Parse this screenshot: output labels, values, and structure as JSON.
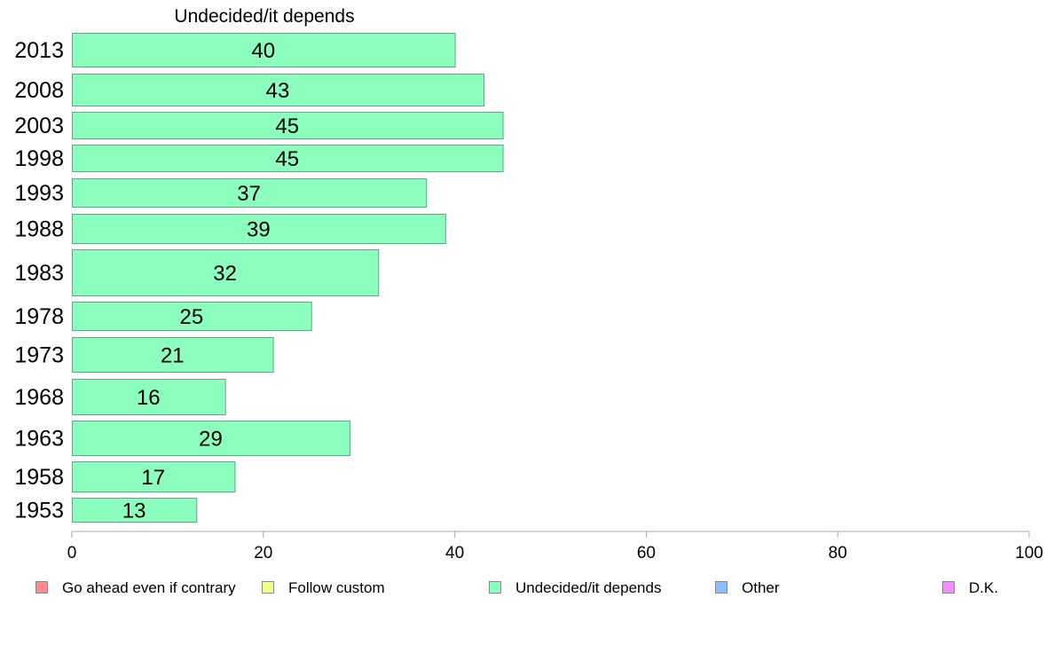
{
  "chart_data": {
    "type": "bar",
    "orientation": "horizontal",
    "title": "Undecided/it depends",
    "categories": [
      "2013",
      "2008",
      "2003",
      "1998",
      "1993",
      "1988",
      "1983",
      "1978",
      "1973",
      "1968",
      "1963",
      "1958",
      "1953"
    ],
    "series": [
      {
        "name": "Undecided/it depends",
        "values": [
          40,
          43,
          45,
          45,
          37,
          39,
          32,
          25,
          21,
          16,
          29,
          17,
          13
        ],
        "color": "#8cffbf"
      }
    ],
    "value_labels": [
      "40",
      "43",
      "45",
      "45",
      "37",
      "39",
      "32",
      "25",
      "21",
      "16",
      "29",
      "17",
      "13"
    ],
    "xlim": [
      0,
      100
    ],
    "xticks": [
      0,
      20,
      40,
      60,
      80,
      100
    ],
    "xtick_labels": [
      "0",
      "20",
      "40",
      "60",
      "80",
      "100"
    ],
    "grid": false,
    "legend_position": "bottom",
    "legend": [
      {
        "label": "Go ahead even if contrary",
        "color": "#ff8c8c"
      },
      {
        "label": "Follow custom",
        "color": "#f2ff8c"
      },
      {
        "label": "Undecided/it depends",
        "color": "#8cffbf"
      },
      {
        "label": "Other",
        "color": "#8cbfff"
      },
      {
        "label": "D.K.",
        "color": "#f28cff"
      }
    ]
  }
}
